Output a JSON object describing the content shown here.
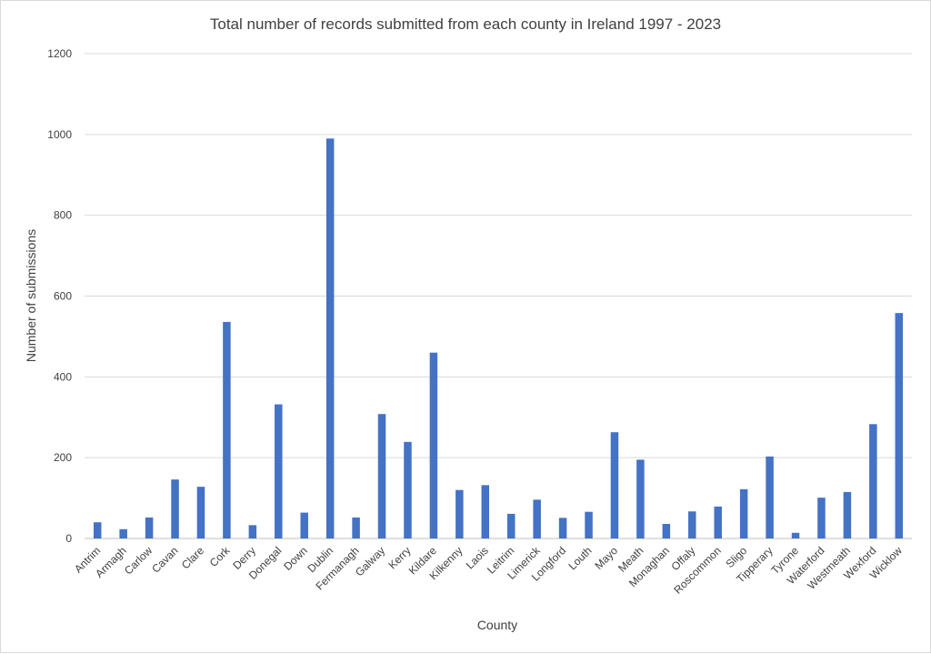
{
  "chart_data": {
    "type": "bar",
    "title": "Total number of records submitted from each county in Ireland 1997 - 2023",
    "xlabel": "County",
    "ylabel": "Number of submissions",
    "ylim": [
      0,
      1200
    ],
    "yticks": [
      0,
      200,
      400,
      600,
      800,
      1000,
      1200
    ],
    "grid": true,
    "legend": "none",
    "bar_color": "#4472C4",
    "categories": [
      "Antrim",
      "Armagh",
      "Carlow",
      "Cavan",
      "Clare",
      "Cork",
      "Derry",
      "Donegal",
      "Down",
      "Dublin",
      "Fermanagh",
      "Galway",
      "Kerry",
      "Kildare",
      "Kilkenny",
      "Laois",
      "Leitrim",
      "Limerick",
      "Longford",
      "Louth",
      "Mayo",
      "Meath",
      "Monaghan",
      "Offaly",
      "Roscommon",
      "Sligo",
      "Tipperary",
      "Tyrone",
      "Waterford",
      "Westmeath",
      "Wexford",
      "Wicklow"
    ],
    "values": [
      40,
      23,
      52,
      146,
      128,
      536,
      33,
      332,
      64,
      990,
      52,
      308,
      239,
      460,
      120,
      132,
      61,
      96,
      51,
      66,
      263,
      195,
      36,
      67,
      79,
      122,
      203,
      14,
      101,
      115,
      283,
      558
    ]
  }
}
